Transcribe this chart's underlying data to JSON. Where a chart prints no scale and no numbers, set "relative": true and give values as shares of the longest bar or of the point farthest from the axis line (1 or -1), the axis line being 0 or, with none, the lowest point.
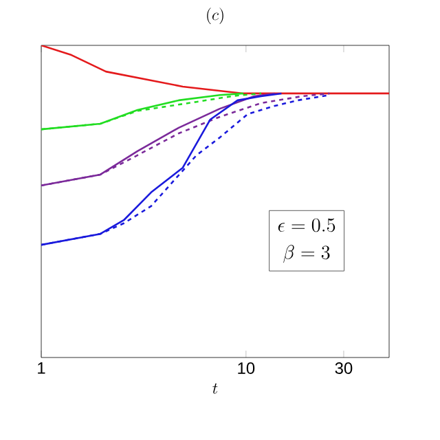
{
  "chart_data": {
    "type": "line",
    "title": "(c)",
    "xlabel": "t",
    "log": "x",
    "relative": true,
    "xlim": [
      1,
      50
    ],
    "xticks": [
      1,
      10,
      30
    ],
    "annotations": [
      "\\epsilon = 0.5",
      "\\beta = 3"
    ],
    "series": [
      {
        "color": "#e41a1c",
        "line_style": "solid",
        "x": [
          1,
          1.405,
          2.07,
          4.91,
          9.71,
          50
        ],
        "values": [
          1,
          0.969,
          0.916,
          0.868,
          0.846,
          0.846
        ]
      },
      {
        "color": "#22dd22",
        "line_style": "solid",
        "x": [
          1,
          1.943,
          2.95,
          4.69,
          7.45,
          9.71
        ],
        "values": [
          0.731,
          0.749,
          0.793,
          0.824,
          0.841,
          0.846
        ]
      },
      {
        "color": "#22dd22",
        "line_style": "dashed",
        "x": [
          1,
          1.943,
          2.95,
          5.73,
          8.7,
          11.85
        ],
        "values": [
          0.731,
          0.749,
          0.79,
          0.819,
          0.838,
          0.846
        ]
      },
      {
        "color": "#7b2a9a",
        "line_style": "solid",
        "x": [
          1,
          1.943,
          2.95,
          4.69,
          7.45,
          10.96,
          13.8
        ],
        "values": [
          0.551,
          0.586,
          0.661,
          0.736,
          0.797,
          0.837,
          0.846
        ]
      },
      {
        "color": "#7b2a9a",
        "line_style": "dashed",
        "x": [
          1,
          1.943,
          2.95,
          4.69,
          7.45,
          11.85,
          18.8,
          25.6
        ],
        "values": [
          0.551,
          0.586,
          0.648,
          0.718,
          0.771,
          0.815,
          0.837,
          0.846
        ]
      },
      {
        "color": "#1a1adc",
        "line_style": "solid",
        "x": [
          1,
          1.943,
          2.53,
          3.44,
          4.91,
          6.68,
          9.1,
          11.85,
          14.9
        ],
        "values": [
          0.361,
          0.396,
          0.44,
          0.529,
          0.608,
          0.762,
          0.824,
          0.837,
          0.846
        ]
      },
      {
        "color": "#1a1adc",
        "line_style": "dashed",
        "x": [
          1,
          1.943,
          2.53,
          3.44,
          5.73,
          7.45,
          10.2,
          13.8,
          17.9,
          25.6
        ],
        "values": [
          0.361,
          0.396,
          0.43,
          0.485,
          0.648,
          0.705,
          0.78,
          0.806,
          0.824,
          0.841
        ]
      }
    ]
  }
}
